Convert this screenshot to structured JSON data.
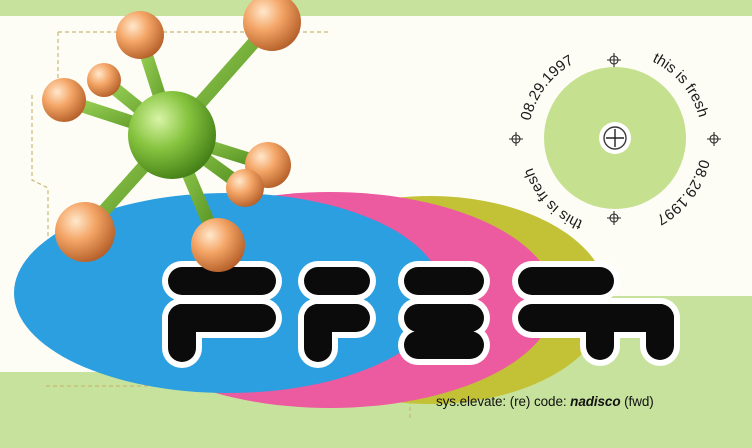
{
  "card": {
    "ring_texts": [
      {
        "text": "08.29.1997"
      },
      {
        "text": "this is fresh"
      },
      {
        "text": "08.29.1997"
      },
      {
        "text": "this is fresh"
      }
    ],
    "credit": {
      "prefix": "sys.elevate: (re) code:",
      "highlight": "nadisco",
      "suffix": "(fwd)"
    }
  },
  "colors": {
    "light_green": "#c6e29c",
    "paper": "#fdfdf6",
    "blue": "#2b9fe0",
    "magenta": "#ec5aa0",
    "olive": "#c3c237",
    "black": "#0b0b0b",
    "molecule_green": "#7ec23c",
    "atom_orange": "#f4a566",
    "disc_green": "#c5e08e"
  },
  "icons": [
    "molecule-icon",
    "crosshair-icon",
    "crosshair-icon",
    "crosshair-icon",
    "crosshair-icon",
    "crosshair-icon",
    "fresh-logo"
  ]
}
